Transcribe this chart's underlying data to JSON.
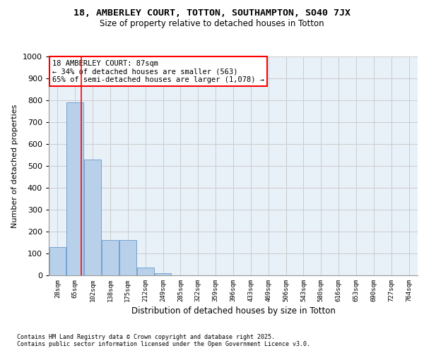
{
  "title1": "18, AMBERLEY COURT, TOTTON, SOUTHAMPTON, SO40 7JX",
  "title2": "Size of property relative to detached houses in Totton",
  "xlabel": "Distribution of detached houses by size in Totton",
  "ylabel": "Number of detached properties",
  "categories": [
    "28sqm",
    "65sqm",
    "102sqm",
    "138sqm",
    "175sqm",
    "212sqm",
    "249sqm",
    "285sqm",
    "322sqm",
    "359sqm",
    "396sqm",
    "433sqm",
    "469sqm",
    "506sqm",
    "543sqm",
    "580sqm",
    "616sqm",
    "653sqm",
    "690sqm",
    "727sqm",
    "764sqm"
  ],
  "values": [
    130,
    790,
    530,
    160,
    160,
    35,
    10,
    0,
    0,
    0,
    0,
    0,
    0,
    0,
    0,
    0,
    0,
    0,
    0,
    0,
    0
  ],
  "bar_color": "#b8d0ea",
  "bar_edgecolor": "#6699cc",
  "red_line_x": 1.35,
  "annotation_text": "18 AMBERLEY COURT: 87sqm\n← 34% of detached houses are smaller (563)\n65% of semi-detached houses are larger (1,078) →",
  "annotation_box_color": "white",
  "annotation_box_edgecolor": "red",
  "ylim": [
    0,
    1000
  ],
  "grid_color": "#cccccc",
  "background_color": "#e8f0f8",
  "footer1": "Contains HM Land Registry data © Crown copyright and database right 2025.",
  "footer2": "Contains public sector information licensed under the Open Government Licence v3.0."
}
